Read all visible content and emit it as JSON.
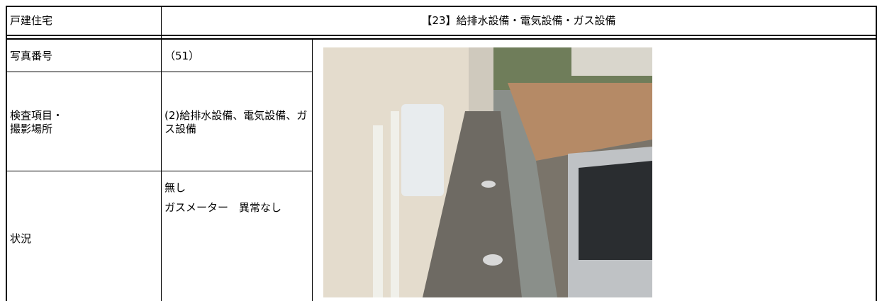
{
  "header": {
    "category": "戸建住宅",
    "title": "【23】給排水設備・電気設備・ガス設備"
  },
  "rows": [
    {
      "label": "写真番号",
      "value": "（51）"
    },
    {
      "label": "検査項目・\n撮影場所",
      "value": "(2)給排水設備、電気設備、ガス設備"
    },
    {
      "label": "状況",
      "values": [
        "無し",
        "ガスメーター　異常なし"
      ]
    }
  ]
}
